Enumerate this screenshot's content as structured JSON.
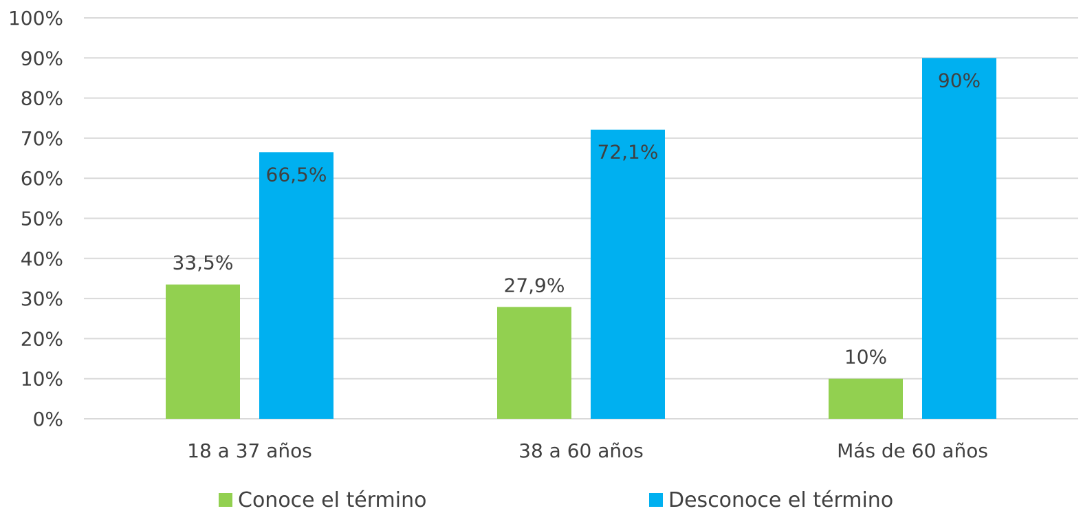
{
  "chart_data": {
    "type": "bar",
    "categories": [
      "18 a 37 años",
      "38 a 60 años",
      "Más de 60 años"
    ],
    "series": [
      {
        "name": "Conoce el término",
        "values": [
          33.5,
          27.9,
          10
        ],
        "labels": [
          "33,5%",
          "27,9%",
          "10%"
        ],
        "color": "#92d050"
      },
      {
        "name": "Desconoce el término",
        "values": [
          66.5,
          72.1,
          90
        ],
        "labels": [
          "66,5%",
          "72,1%",
          "90%"
        ],
        "color": "#00b0f0"
      }
    ],
    "ylim": [
      0,
      100
    ],
    "yticks": [
      "0%",
      "10%",
      "20%",
      "30%",
      "40%",
      "50%",
      "60%",
      "70%",
      "80%",
      "90%",
      "100%"
    ],
    "grid": true,
    "legend": "bottom",
    "title": "",
    "xlabel": "",
    "ylabel": ""
  }
}
